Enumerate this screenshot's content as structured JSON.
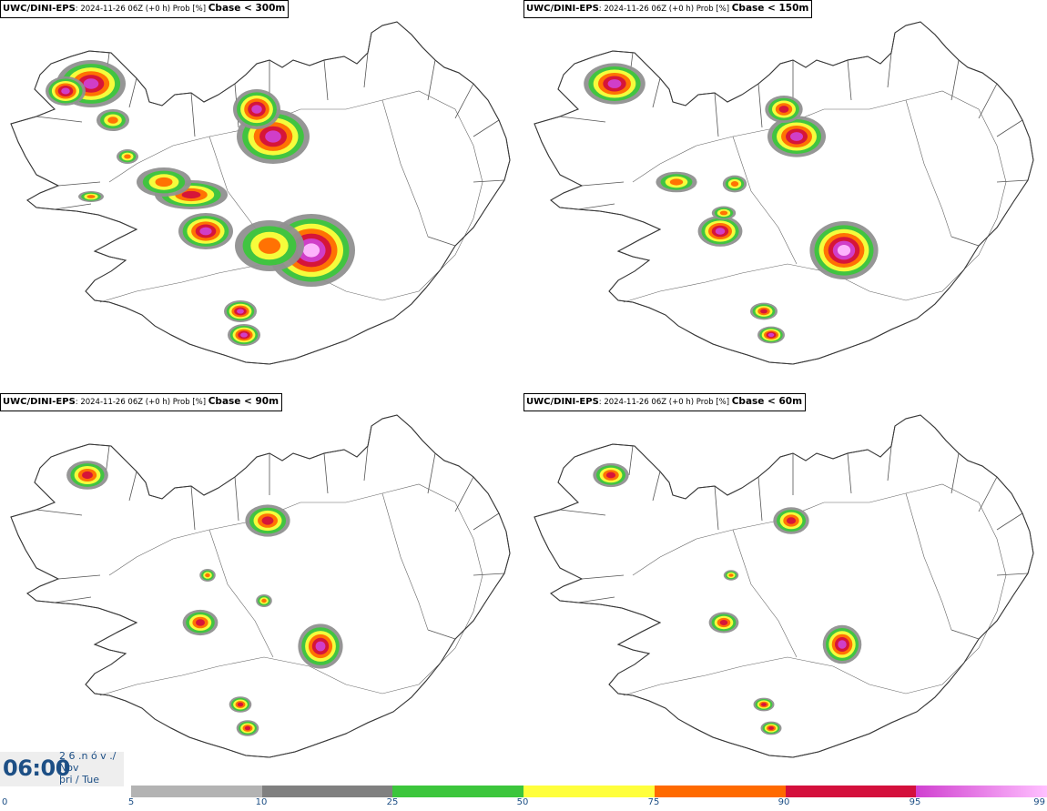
{
  "panels": [
    {
      "model": "UWC/DINI-EPS",
      "meta": ": 2024-11-26 06Z (+0 h) Prob [%] ",
      "field": "Cbase < 300m"
    },
    {
      "model": "UWC/DINI-EPS",
      "meta": ": 2024-11-26 06Z (+0 h) Prob [%] ",
      "field": "Cbase < 150m"
    },
    {
      "model": "UWC/DINI-EPS",
      "meta": ": 2024-11-26 06Z (+0 h) Prob [%] ",
      "field": "Cbase < 90m"
    },
    {
      "model": "UWC/DINI-EPS",
      "meta": ": 2024-11-26 06Z (+0 h) Prob [%] ",
      "field": "Cbase < 60m"
    }
  ],
  "time": {
    "clock": "06:00",
    "date": "2 6 .n ó v ./\nNov\nþri / Tue"
  },
  "legend": {
    "ticks": [
      "0",
      "5",
      "10",
      "25",
      "50",
      "75",
      "90",
      "95",
      "99"
    ],
    "colors": [
      "#ffffff",
      "#b3b3b3",
      "#808080",
      "#3cc63c",
      "#ffff3c",
      "#ff6a00",
      "#d4103c",
      "#d040d0",
      "#ffc0ff"
    ]
  },
  "map_colors": {
    "coast": "#3a3a3a",
    "p10": "#909090",
    "p25": "#3cc63c",
    "p50": "#ffff3c",
    "p75": "#ff6a00",
    "p90": "#d4103c",
    "p95": "#d040d0",
    "p99": "#ffbaff"
  }
}
